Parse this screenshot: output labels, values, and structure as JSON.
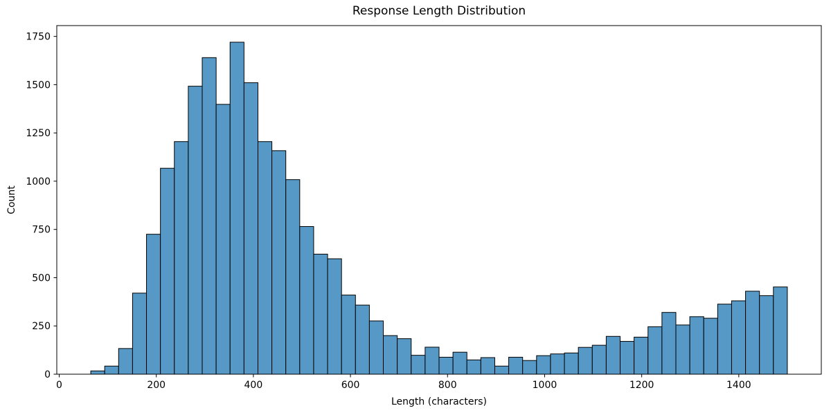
{
  "chart_data": {
    "type": "bar",
    "subtype": "histogram",
    "title": "Response Length Distribution",
    "xlabel": "Length (characters)",
    "ylabel": "Count",
    "bin_start": 65,
    "bin_width": 28.7,
    "counts": [
      17,
      42,
      133,
      420,
      725,
      1067,
      1205,
      1492,
      1640,
      1398,
      1720,
      1510,
      1205,
      1158,
      1008,
      765,
      622,
      598,
      410,
      358,
      276,
      200,
      184,
      98,
      140,
      88,
      114,
      74,
      86,
      42,
      88,
      71,
      96,
      105,
      110,
      139,
      150,
      196,
      170,
      192,
      246,
      320,
      255,
      298,
      290,
      363,
      380,
      430,
      407,
      452
    ],
    "xticks": [
      0,
      200,
      400,
      600,
      800,
      1000,
      1200,
      1400
    ],
    "yticks": [
      0,
      250,
      500,
      750,
      1000,
      1250,
      1500,
      1750
    ],
    "xlim": [
      -5,
      1570
    ],
    "ylim": [
      0,
      1806
    ],
    "grid": false,
    "legend": null,
    "colors": {
      "bar_fill": "#5799C6",
      "bar_edge": "#000000",
      "text": "#000000",
      "background": "#FFFFFF",
      "spine": "#000000"
    }
  }
}
